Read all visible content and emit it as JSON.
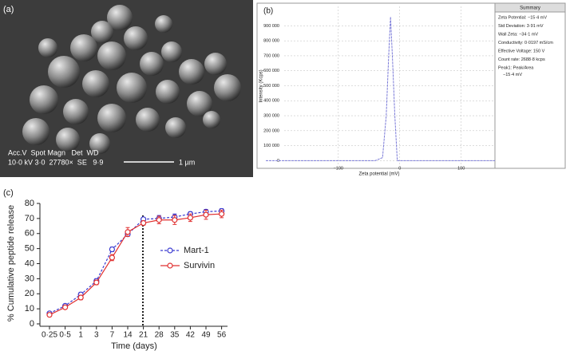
{
  "sem": {
    "label": "(a)",
    "header": "Acc.V  Spot Magn   Det  WD",
    "info": "10·0 kV 3·0  27780×  SE   9·9",
    "scale": "1 µm"
  },
  "chart_data": [
    {
      "type": "line",
      "title": "(b)",
      "xlabel": "Zeta potential (mV)",
      "ylabel": "Intensity (Kcps)",
      "x": [
        -218,
        -40,
        -28,
        -22,
        -18,
        -15,
        -12,
        -8,
        -4,
        5,
        155
      ],
      "values": [
        0,
        0,
        20000,
        300000,
        700000,
        960000,
        700000,
        300000,
        0,
        0,
        0
      ],
      "color": "#7a7ad8",
      "xlim": [
        -218,
        155
      ],
      "ylim": [
        -30000,
        1030000
      ],
      "xticks": [
        {
          "value": -100,
          "label": "−100"
        },
        0,
        100
      ],
      "yticks": [
        0,
        {
          "value": 100000,
          "label": "100 000"
        },
        {
          "value": 200000,
          "label": "200 000"
        },
        {
          "value": 300000,
          "label": "300 000"
        },
        {
          "value": 400000,
          "label": "400 000"
        },
        {
          "value": 500000,
          "label": "500 000"
        },
        {
          "value": 600000,
          "label": "600 000"
        },
        {
          "value": 700000,
          "label": "700 000"
        },
        {
          "value": 800000,
          "label": "800 000"
        },
        {
          "value": 900000,
          "label": "900 000"
        }
      ],
      "grid": true,
      "summary_title": "Summary",
      "summary": [
        "Zeta Potential: −15·4 mV",
        "Std Deviation: 3·91 mV",
        "Wall Zeta: −34·1 mV",
        "Conductivity: 0·0197 mS/cm",
        "Effective Voltage: 150 V",
        "Count rate: 2688·8 kcps",
        "Peak1: Peak/Area",
        "−15·4 mV"
      ]
    },
    {
      "type": "errorline",
      "title": "(c)",
      "xlabel": "Time (days)",
      "ylabel": "% Cumulative peptide release",
      "categories": [
        "0·25",
        "0·5",
        "1",
        "3",
        "7",
        "14",
        "21",
        "28",
        "35",
        "42",
        "49",
        "56"
      ],
      "series": [
        {
          "name": "Mart-1",
          "color": "#3a3ad0",
          "dashed": true,
          "values": [
            7,
            12,
            19.5,
            28.5,
            49.5,
            59.5,
            69.5,
            70,
            71,
            73,
            74.5,
            75
          ],
          "errors": [
            1,
            1,
            1.5,
            1.5,
            1.5,
            1.5,
            1,
            2,
            2,
            1.5,
            1.5,
            1.5
          ]
        },
        {
          "name": "Survivin",
          "color": "#e03030",
          "dashed": false,
          "values": [
            6,
            11,
            17.5,
            27.5,
            44,
            61,
            67,
            69,
            69,
            70.5,
            72.5,
            73
          ],
          "errors": [
            1,
            1,
            1.5,
            1.5,
            2,
            3,
            1.5,
            2.5,
            3,
            2.5,
            3,
            2.5
          ]
        }
      ],
      "ylim": [
        0,
        80
      ],
      "yticks": [
        0,
        10,
        20,
        30,
        40,
        50,
        60,
        70,
        80
      ]
    }
  ]
}
